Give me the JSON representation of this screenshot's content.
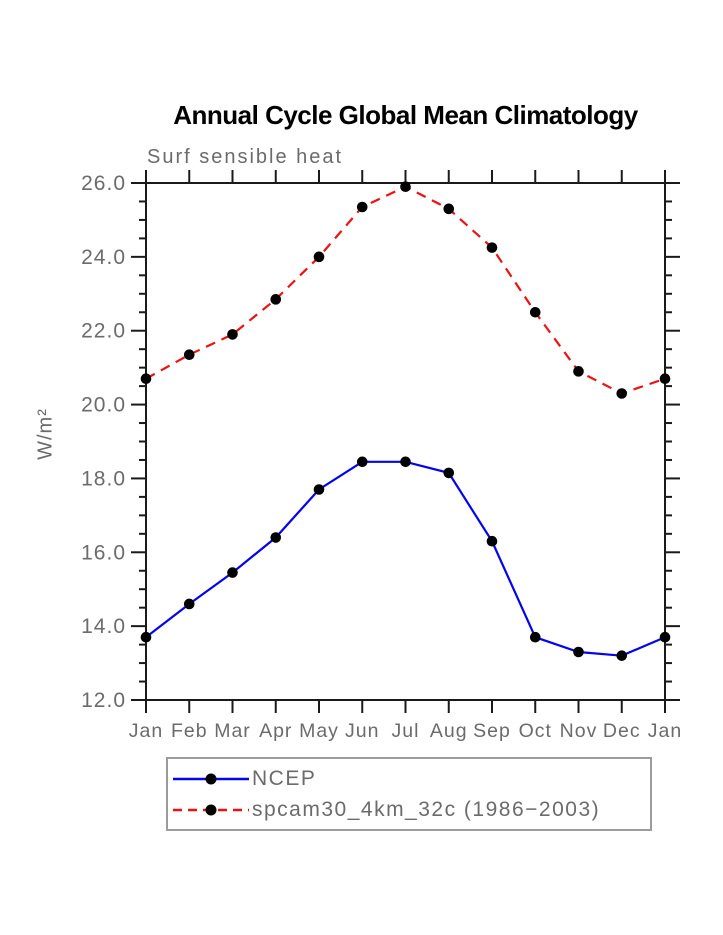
{
  "page": {
    "background": "#ffffff"
  },
  "chart_data": {
    "type": "line",
    "title": "Annual Cycle Global Mean Climatology",
    "subtitle": "Surf sensible heat",
    "ylabel": "W/m²",
    "xlabel": "",
    "x_categories": [
      "Jan",
      "Feb",
      "Mar",
      "Apr",
      "May",
      "Jun",
      "Jul",
      "Aug",
      "Sep",
      "Oct",
      "Nov",
      "Dec",
      "Jan"
    ],
    "ylim": [
      12.0,
      26.0
    ],
    "y_major_step": 2,
    "y_minor_step": 0.5,
    "y_tick_labels": [
      "26.0",
      "24.0",
      "22.0",
      "20.0",
      "18.0",
      "16.0",
      "14.0",
      "12.0"
    ],
    "grid": false,
    "legend_position": "bottom",
    "axis_color": "#1a1a1a",
    "text_color": "#6b6b6b",
    "marker_color": "#000000",
    "series": [
      {
        "name": "NCEP",
        "color": "#0404ee",
        "style": "solid",
        "values": [
          13.7,
          14.6,
          15.45,
          16.4,
          17.7,
          18.45,
          18.45,
          18.15,
          16.3,
          13.7,
          13.3,
          13.2,
          13.7
        ]
      },
      {
        "name": "spcam30_4km_32c (1986−2003)",
        "color": "#ee1111",
        "style": "dashed",
        "values": [
          20.7,
          21.35,
          21.9,
          22.85,
          24.0,
          25.35,
          25.9,
          25.3,
          24.25,
          22.5,
          20.9,
          20.3,
          20.7
        ]
      }
    ]
  }
}
